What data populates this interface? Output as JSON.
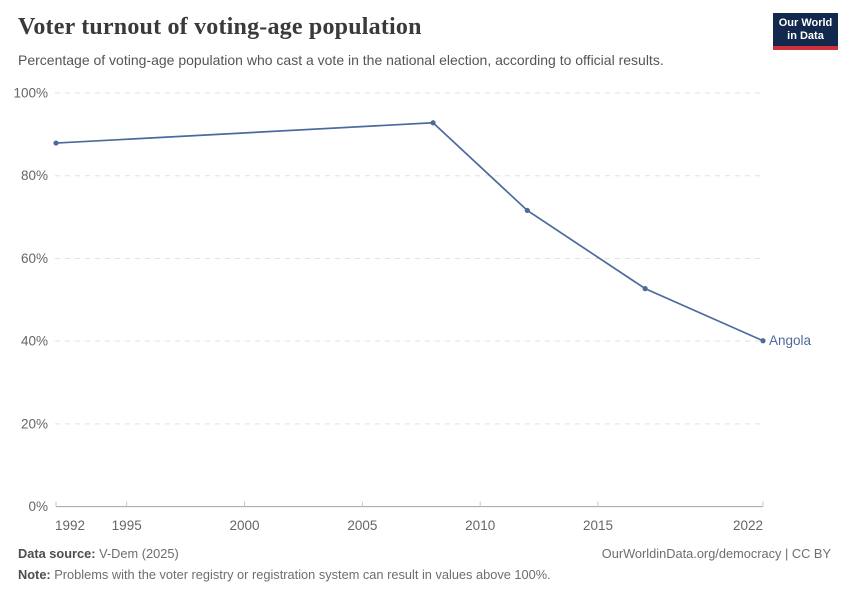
{
  "header": {
    "title": "Voter turnout of voting-age population",
    "subtitle": "Percentage of voting-age population who cast a vote in the national election, according to official results.",
    "logo": {
      "line1": "Our World",
      "line2": "in Data"
    }
  },
  "chart_data": {
    "type": "line",
    "title": "Voter turnout of voting-age population",
    "entity": "Angola",
    "xlim": [
      1992,
      2022
    ],
    "ylim": [
      0,
      100
    ],
    "x_ticks": [
      1992,
      1995,
      2000,
      2005,
      2010,
      2015,
      2022
    ],
    "y_ticks": [
      0,
      20,
      40,
      60,
      80,
      100
    ],
    "y_suffix": "%",
    "grid": "horizontal-dashed",
    "legend": "inline-end-label",
    "series": [
      {
        "name": "Angola",
        "color": "#4C6A9C",
        "points": [
          [
            1992,
            87.9
          ],
          [
            2008,
            92.8
          ],
          [
            2012,
            71.6
          ],
          [
            2017,
            52.7
          ],
          [
            2022,
            40.1
          ]
        ]
      }
    ]
  },
  "footer": {
    "source_label": "Data source:",
    "source_value": " V-Dem (2025)",
    "attribution": "OurWorldinData.org/democracy | CC BY",
    "note_label": "Note:",
    "note_value": " Problems with the voter registry or registration system can result in values above 100%."
  },
  "colors": {
    "accent_line": "#4C6A9C",
    "logo_bg": "#12294d",
    "logo_stripe": "#cf303a",
    "grid": "#e2e2e2",
    "axis": "#a3a3a3",
    "axis_tick": "#c6c6c6",
    "tick_text": "#666666",
    "title_text": "#3a3a3a",
    "subtitle_text": "#555555",
    "footer_text": "#6e6e6e"
  }
}
